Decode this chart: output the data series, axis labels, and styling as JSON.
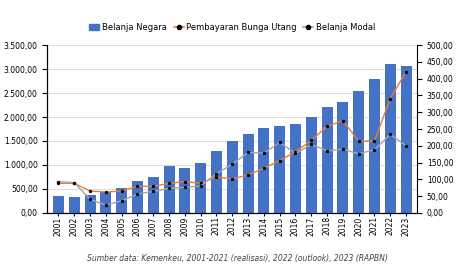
{
  "years": [
    2001,
    2002,
    2003,
    2004,
    2005,
    2006,
    2007,
    2008,
    2009,
    2010,
    2011,
    2012,
    2013,
    2014,
    2015,
    2016,
    2017,
    2018,
    2019,
    2020,
    2021,
    2022,
    2023
  ],
  "belanja_negara": [
    341,
    322,
    376,
    427,
    509,
    667,
    757,
    985,
    937,
    1042,
    1295,
    1491,
    1638,
    1777,
    1806,
    1864,
    2007,
    2213,
    2309,
    2541,
    2786,
    3106,
    3061
  ],
  "pembayaran_bunga_utang": [
    88,
    88,
    65,
    62,
    65,
    79,
    79,
    88,
    93,
    88,
    107,
    101,
    113,
    133,
    156,
    182,
    216,
    258,
    275,
    214,
    214,
    341,
    421
  ],
  "belanja_modal": [
    93,
    90,
    40,
    23,
    36,
    56,
    64,
    73,
    76,
    80,
    117,
    145,
    180,
    178,
    210,
    177,
    204,
    185,
    190,
    176,
    188,
    234,
    200
  ],
  "bar_color": "#4472C4",
  "line1_color": "#ED7D31",
  "line2_color": "#A5A5A5",
  "ylim_left": [
    0,
    3500
  ],
  "ylim_right": [
    0,
    500
  ],
  "yticks_left": [
    0,
    500,
    1000,
    1500,
    2000,
    2500,
    3000,
    3500
  ],
  "yticks_right": [
    0,
    50,
    100,
    150,
    200,
    250,
    300,
    350,
    400,
    450,
    500
  ],
  "source_text": "Sumber data: Kemenkeu, 2001-2021 (realisasi), 2022 (outlook), 2023 (RAPBN)",
  "legend_labels": [
    "Belanja Negara",
    "Pembayaran Bunga Utang",
    "Belanja Modal"
  ],
  "bg_color": "#FFFFFF",
  "grid_color": "#D0D0D0",
  "tick_fontsize": 5.5,
  "legend_fontsize": 6.0,
  "source_fontsize": 5.5
}
